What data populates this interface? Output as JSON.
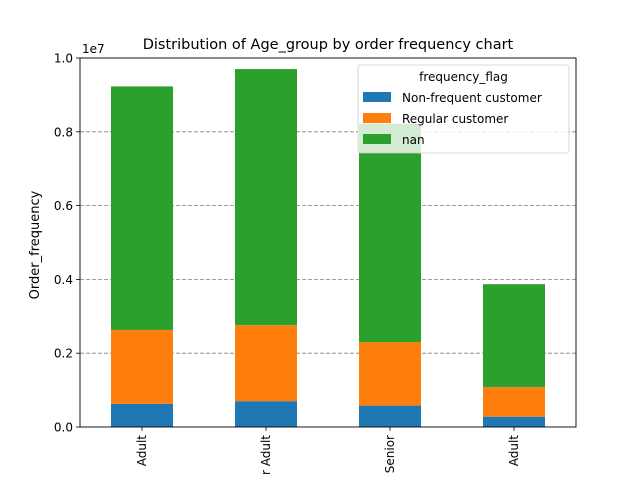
{
  "chart_data": {
    "type": "bar",
    "stacked": true,
    "title": "Distribution of Age_group  by order frequency chart",
    "ylabel": "Order_frequency",
    "xlabel": "",
    "scale_label": "1e7",
    "ylim": [
      0,
      1.0
    ],
    "yticks": [
      "0.0",
      "0.2",
      "0.4",
      "0.6",
      "0.8",
      "1.0"
    ],
    "grid": "horizontal dashed",
    "categories": [
      "Adult",
      "r Adult",
      "Senior",
      "Adult"
    ],
    "legend": {
      "title": "frequency_flag",
      "placement": "top-right"
    },
    "series": [
      {
        "name": "Non-frequent customer",
        "color": "#1f77b4",
        "values": [
          0.063,
          0.07,
          0.058,
          0.028
        ]
      },
      {
        "name": "Regular customer",
        "color": "#ff7f0e",
        "values": [
          0.2,
          0.206,
          0.172,
          0.08
        ]
      },
      {
        "name": "nan",
        "color": "#2ca02c",
        "values": [
          0.66,
          0.694,
          0.592,
          0.279
        ]
      }
    ]
  }
}
